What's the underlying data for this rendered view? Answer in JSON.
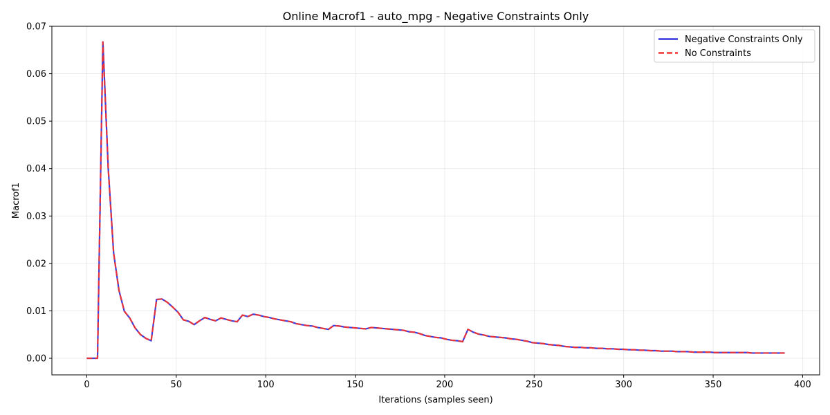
{
  "chart_data": {
    "type": "line",
    "title": "Online Macrof1 - auto_mpg - Negative Constraints Only",
    "xlabel": "Iterations (samples seen)",
    "ylabel": "Macrof1",
    "xlim": [
      -19.5,
      409.5
    ],
    "ylim": [
      -0.0035,
      0.07
    ],
    "x_ticks": [
      0,
      50,
      100,
      150,
      200,
      250,
      300,
      350,
      400
    ],
    "y_ticks": [
      0.0,
      0.01,
      0.02,
      0.03,
      0.04,
      0.05,
      0.06,
      0.07
    ],
    "y_tick_labels": [
      "0.00",
      "0.01",
      "0.02",
      "0.03",
      "0.04",
      "0.05",
      "0.06",
      "0.07"
    ],
    "grid": true,
    "legend_position": "top-right",
    "series": [
      {
        "name": "Negative Constraints Only",
        "color": "#3333dd",
        "style": "solid",
        "x": [
          0,
          3,
          6,
          9,
          12,
          15,
          18,
          21,
          24,
          27,
          30,
          33,
          36,
          39,
          42,
          45,
          48,
          51,
          54,
          57,
          60,
          63,
          66,
          69,
          72,
          75,
          78,
          81,
          84,
          87,
          90,
          93,
          96,
          99,
          102,
          105,
          108,
          111,
          114,
          117,
          120,
          123,
          126,
          129,
          132,
          135,
          138,
          141,
          144,
          147,
          150,
          153,
          156,
          159,
          162,
          165,
          168,
          171,
          174,
          177,
          180,
          183,
          186,
          189,
          192,
          195,
          198,
          201,
          204,
          207,
          210,
          213,
          216,
          219,
          222,
          225,
          228,
          231,
          234,
          237,
          240,
          243,
          246,
          249,
          252,
          255,
          258,
          261,
          264,
          267,
          270,
          273,
          276,
          279,
          282,
          285,
          288,
          291,
          294,
          297,
          300,
          303,
          306,
          309,
          312,
          315,
          318,
          321,
          324,
          327,
          330,
          333,
          336,
          339,
          342,
          345,
          348,
          351,
          354,
          357,
          360,
          363,
          366,
          369,
          372,
          375,
          378,
          381,
          384,
          387,
          390
        ],
        "y": [
          0.0,
          0.0,
          0.0,
          0.0667,
          0.04,
          0.0222,
          0.0143,
          0.0099,
          0.0085,
          0.0064,
          0.005,
          0.0042,
          0.0037,
          0.0124,
          0.0125,
          0.0118,
          0.0108,
          0.0097,
          0.0081,
          0.0078,
          0.0071,
          0.0079,
          0.0086,
          0.0082,
          0.0079,
          0.0085,
          0.0082,
          0.0079,
          0.0077,
          0.0091,
          0.0088,
          0.0093,
          0.0091,
          0.0088,
          0.0086,
          0.0083,
          0.0081,
          0.0079,
          0.0077,
          0.0073,
          0.0071,
          0.0069,
          0.0068,
          0.0065,
          0.0063,
          0.0061,
          0.0069,
          0.0068,
          0.0066,
          0.0065,
          0.0064,
          0.0063,
          0.0062,
          0.0065,
          0.0064,
          0.0063,
          0.0062,
          0.0061,
          0.006,
          0.0059,
          0.0056,
          0.0055,
          0.0052,
          0.0048,
          0.0046,
          0.0044,
          0.0043,
          0.004,
          0.0038,
          0.0037,
          0.0035,
          0.0061,
          0.0055,
          0.0051,
          0.0049,
          0.0046,
          0.0045,
          0.0044,
          0.0043,
          0.0041,
          0.004,
          0.0038,
          0.0036,
          0.0033,
          0.0032,
          0.0031,
          0.0029,
          0.0028,
          0.0027,
          0.0025,
          0.0024,
          0.0023,
          0.0023,
          0.0022,
          0.0022,
          0.0021,
          0.0021,
          0.002,
          0.002,
          0.0019,
          0.0019,
          0.0018,
          0.0018,
          0.0017,
          0.0017,
          0.0016,
          0.0016,
          0.0015,
          0.0015,
          0.0015,
          0.0014,
          0.0014,
          0.0014,
          0.0013,
          0.0013,
          0.0013,
          0.0013,
          0.0012,
          0.0012,
          0.0012,
          0.0012,
          0.0012,
          0.0012,
          0.0012,
          0.0011,
          0.0011,
          0.0011,
          0.0011,
          0.0011,
          0.0011,
          0.0011
        ]
      },
      {
        "name": "No Constraints",
        "color": "#ee3333",
        "style": "dashed",
        "x": [
          0,
          3,
          6,
          9,
          12,
          15,
          18,
          21,
          24,
          27,
          30,
          33,
          36,
          39,
          42,
          45,
          48,
          51,
          54,
          57,
          60,
          63,
          66,
          69,
          72,
          75,
          78,
          81,
          84,
          87,
          90,
          93,
          96,
          99,
          102,
          105,
          108,
          111,
          114,
          117,
          120,
          123,
          126,
          129,
          132,
          135,
          138,
          141,
          144,
          147,
          150,
          153,
          156,
          159,
          162,
          165,
          168,
          171,
          174,
          177,
          180,
          183,
          186,
          189,
          192,
          195,
          198,
          201,
          204,
          207,
          210,
          213,
          216,
          219,
          222,
          225,
          228,
          231,
          234,
          237,
          240,
          243,
          246,
          249,
          252,
          255,
          258,
          261,
          264,
          267,
          270,
          273,
          276,
          279,
          282,
          285,
          288,
          291,
          294,
          297,
          300,
          303,
          306,
          309,
          312,
          315,
          318,
          321,
          324,
          327,
          330,
          333,
          336,
          339,
          342,
          345,
          348,
          351,
          354,
          357,
          360,
          363,
          366,
          369,
          372,
          375,
          378,
          381,
          384,
          387,
          390
        ],
        "y": [
          0.0,
          0.0,
          0.0,
          0.0667,
          0.04,
          0.0222,
          0.0143,
          0.0099,
          0.0085,
          0.0064,
          0.005,
          0.0042,
          0.0037,
          0.0124,
          0.0125,
          0.0118,
          0.0108,
          0.0097,
          0.0081,
          0.0078,
          0.0071,
          0.0079,
          0.0086,
          0.0082,
          0.0079,
          0.0085,
          0.0082,
          0.0079,
          0.0077,
          0.0091,
          0.0088,
          0.0093,
          0.0091,
          0.0088,
          0.0086,
          0.0083,
          0.0081,
          0.0079,
          0.0077,
          0.0073,
          0.0071,
          0.0069,
          0.0068,
          0.0065,
          0.0063,
          0.0061,
          0.0069,
          0.0068,
          0.0066,
          0.0065,
          0.0064,
          0.0063,
          0.0062,
          0.0065,
          0.0064,
          0.0063,
          0.0062,
          0.0061,
          0.006,
          0.0059,
          0.0056,
          0.0055,
          0.0052,
          0.0048,
          0.0046,
          0.0044,
          0.0043,
          0.004,
          0.0038,
          0.0037,
          0.0035,
          0.0061,
          0.0055,
          0.0051,
          0.0049,
          0.0046,
          0.0045,
          0.0044,
          0.0043,
          0.0041,
          0.004,
          0.0038,
          0.0036,
          0.0033,
          0.0032,
          0.0031,
          0.0029,
          0.0028,
          0.0027,
          0.0025,
          0.0024,
          0.0023,
          0.0023,
          0.0022,
          0.0022,
          0.0021,
          0.0021,
          0.002,
          0.002,
          0.0019,
          0.0019,
          0.0018,
          0.0018,
          0.0017,
          0.0017,
          0.0016,
          0.0016,
          0.0015,
          0.0015,
          0.0015,
          0.0014,
          0.0014,
          0.0014,
          0.0013,
          0.0013,
          0.0013,
          0.0013,
          0.0012,
          0.0012,
          0.0012,
          0.0012,
          0.0012,
          0.0012,
          0.0012,
          0.0011,
          0.0011,
          0.0011,
          0.0011,
          0.0011,
          0.0011,
          0.0011
        ]
      }
    ]
  }
}
